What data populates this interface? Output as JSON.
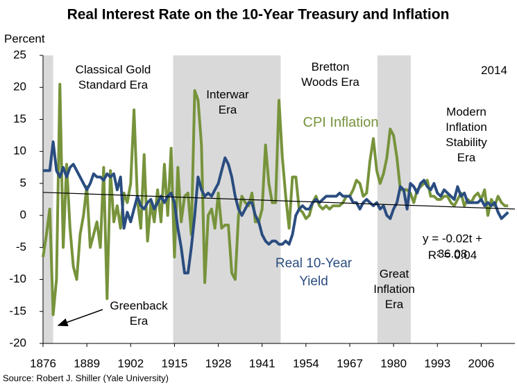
{
  "chart_data": {
    "type": "line",
    "title": "Real Interest Rate on the 10-Year Treasury and Inflation",
    "y_label": "Percent",
    "source": "Source: Robert J. Shiller (Yale University)",
    "x": [
      1876,
      1877,
      1878,
      1879,
      1880,
      1881,
      1882,
      1883,
      1884,
      1885,
      1886,
      1887,
      1888,
      1889,
      1890,
      1891,
      1892,
      1893,
      1894,
      1895,
      1896,
      1897,
      1898,
      1899,
      1900,
      1901,
      1902,
      1903,
      1904,
      1905,
      1906,
      1907,
      1908,
      1909,
      1910,
      1911,
      1912,
      1913,
      1914,
      1915,
      1916,
      1917,
      1918,
      1919,
      1920,
      1921,
      1922,
      1923,
      1924,
      1925,
      1926,
      1927,
      1928,
      1929,
      1930,
      1931,
      1932,
      1933,
      1934,
      1935,
      1936,
      1937,
      1938,
      1939,
      1940,
      1941,
      1942,
      1943,
      1944,
      1945,
      1946,
      1947,
      1948,
      1949,
      1950,
      1951,
      1952,
      1953,
      1954,
      1955,
      1956,
      1957,
      1958,
      1959,
      1960,
      1961,
      1962,
      1963,
      1964,
      1965,
      1966,
      1967,
      1968,
      1969,
      1970,
      1971,
      1972,
      1973,
      1974,
      1975,
      1976,
      1977,
      1978,
      1979,
      1980,
      1981,
      1982,
      1983,
      1984,
      1985,
      1986,
      1987,
      1988,
      1989,
      1990,
      1991,
      1992,
      1993,
      1994,
      1995,
      1996,
      1997,
      1998,
      1999,
      2000,
      2001,
      2002,
      2003,
      2004,
      2005,
      2006,
      2007,
      2008,
      2009,
      2010,
      2011,
      2012,
      2013,
      2014
    ],
    "series": [
      {
        "name": "Real 10-Year Yield",
        "color": "#2a4d80",
        "values": [
          7,
          7,
          7,
          11.5,
          7,
          6,
          7.5,
          6,
          7.5,
          8,
          7,
          6,
          5,
          4,
          5,
          6.5,
          6,
          6,
          5.5,
          6.5,
          6,
          6.5,
          4,
          6,
          -2,
          0.5,
          -1,
          1,
          3,
          1.5,
          1,
          2,
          2.5,
          1,
          2,
          3,
          2,
          3,
          3.5,
          2,
          -2,
          -5,
          -9,
          -9,
          -5,
          0,
          6,
          4,
          3,
          3.5,
          3,
          4,
          5,
          7,
          9,
          8,
          6,
          3,
          1,
          0,
          1,
          2,
          2,
          0,
          -1,
          -3,
          -4,
          -4.5,
          -4,
          -4,
          -4.5,
          -4.5,
          -4,
          -4.5,
          -3,
          0,
          1,
          1.5,
          1,
          1,
          2,
          2.5,
          2,
          2.5,
          3,
          3,
          3,
          3,
          3.5,
          3,
          3,
          3,
          2,
          2,
          1,
          2,
          2.5,
          2,
          1.5,
          2,
          1,
          1.5,
          0,
          -0.5,
          1,
          2,
          4.5,
          4,
          1,
          5,
          4.5,
          3.5,
          5,
          5.5,
          4.5,
          4,
          5,
          3.5,
          3,
          4,
          3.5,
          3,
          2.5,
          4.5,
          3,
          3.5,
          2,
          2,
          2,
          2,
          2.5,
          1.5,
          2,
          1.5,
          2,
          0.5,
          -0.5,
          0,
          0.5
        ]
      },
      {
        "name": "CPI Inflation",
        "color": "#77933c",
        "values": [
          -6.5,
          -3,
          1,
          -15.5,
          -10,
          20.5,
          -5,
          8,
          -2,
          -8,
          -10,
          -3,
          0,
          4.5,
          -5,
          -3,
          -1,
          -5,
          7.5,
          -13,
          7,
          -1,
          1.5,
          -2,
          3.5,
          2,
          5,
          16.5,
          2.5,
          -2,
          9.5,
          -4,
          2,
          -1,
          4,
          -1,
          8,
          0,
          10.5,
          -6.5,
          7.5,
          -1,
          3,
          3.5,
          -3,
          19.5,
          18,
          11,
          -10.5,
          0,
          1,
          -2,
          3.5,
          -2,
          -1.5,
          -1.5,
          -9,
          -10,
          0,
          3,
          2,
          1.5,
          3.5,
          -1,
          -1,
          1,
          11,
          5,
          2,
          2,
          18,
          9,
          3,
          -2,
          6,
          6,
          1,
          0.5,
          -0.5,
          0,
          2,
          3,
          1.5,
          1,
          1.5,
          1,
          1.5,
          1.5,
          1.5,
          2,
          3,
          3,
          4,
          5.5,
          5,
          3,
          3.5,
          8.5,
          12,
          7,
          5,
          6.5,
          9,
          13.5,
          12.5,
          9,
          4,
          4,
          4,
          3.5,
          2,
          4,
          4.5,
          5,
          5.5,
          3,
          3,
          2.5,
          2.5,
          3,
          3,
          2,
          1.5,
          2.5,
          3.5,
          1.5,
          2.5,
          2,
          3,
          3.5,
          2.5,
          4,
          0,
          2.5,
          1.5,
          3,
          2,
          1.5,
          1.5
        ]
      }
    ],
    "trendline": {
      "x": [
        1876,
        2016
      ],
      "values": [
        3.6,
        1.0
      ],
      "color": "#000000"
    },
    "bands": [
      {
        "start": 1876,
        "end": 1879
      },
      {
        "start": 1914.6,
        "end": 1946.5
      },
      {
        "start": 1975.2,
        "end": 1985.1
      }
    ],
    "band_color": "#d9d9d9",
    "annotations": [
      "Classical Gold\nStandard Era",
      "Interwar\nEra",
      "Bretton\nWoods Era",
      "2014",
      "Modern\nInflation\nStability\nEra",
      "Great\nInflation\nEra",
      "Greenback\nEra",
      "y = -0.02t + 36.08",
      "R² = 0.04"
    ],
    "xlim": [
      1876,
      2016
    ],
    "xticks": [
      1876,
      1889,
      1902,
      1915,
      1928,
      1941,
      1954,
      1967,
      1980,
      1993,
      2006
    ],
    "ylim": [
      -20,
      25
    ],
    "yticks": [
      -20,
      -15,
      -10,
      -5,
      0,
      5,
      10,
      15,
      20,
      25
    ],
    "grid": false
  }
}
